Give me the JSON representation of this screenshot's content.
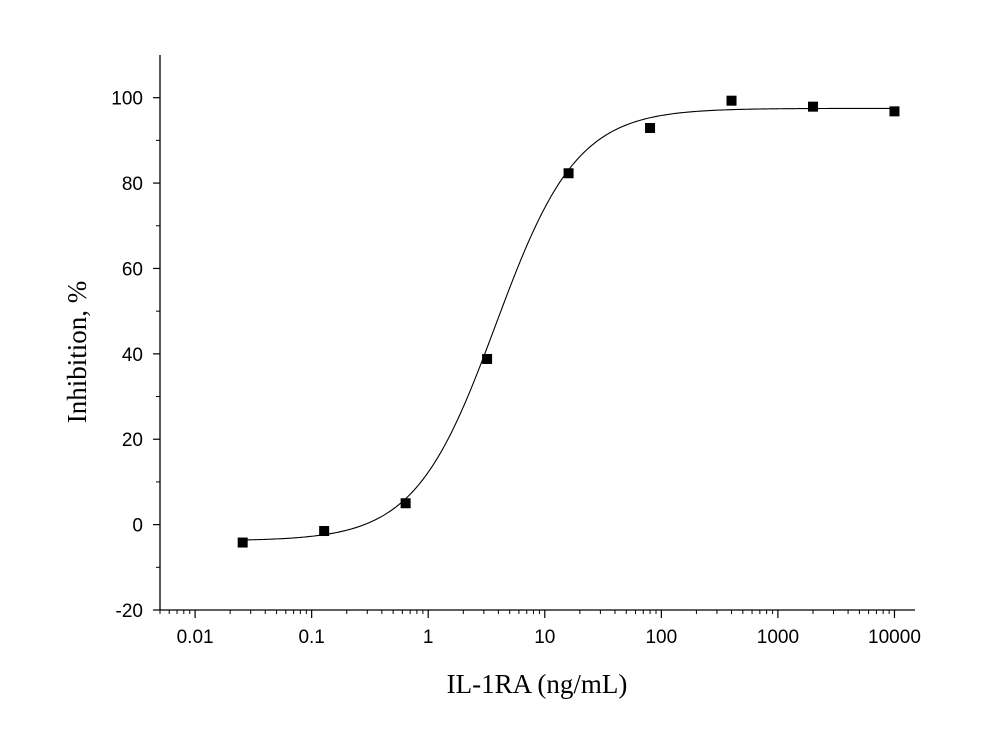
{
  "chart_data": {
    "type": "scatter",
    "xlabel": "IL-1RA (ng/mL)",
    "ylabel": "Inhibition, %",
    "xscale": "log",
    "xlim": [
      0.005,
      15000
    ],
    "ylim": [
      -20,
      110
    ],
    "x_ticks": [
      0.01,
      0.1,
      1,
      10,
      100,
      1000,
      10000
    ],
    "x_tick_labels": [
      "0.01",
      "0.1",
      "1",
      "10",
      "100",
      "1000",
      "10000"
    ],
    "y_ticks": [
      -20,
      0,
      20,
      40,
      60,
      80,
      100
    ],
    "y_tick_labels": [
      "-20",
      "0",
      "20",
      "40",
      "60",
      "80",
      "100"
    ],
    "grid": false,
    "legend": "none",
    "series": [
      {
        "marker": "square",
        "color": "#000000",
        "x": [
          0.0256,
          0.128,
          0.64,
          3.2,
          16,
          80,
          400,
          2000,
          10000
        ],
        "y": [
          -4.2,
          -1.5,
          5.0,
          38.8,
          82.3,
          92.9,
          99.3,
          97.9,
          96.8
        ]
      }
    ],
    "fit": {
      "model": "four-parameter logistic",
      "color": "#000000",
      "bottom": -3.8,
      "top": 97.5,
      "ec50": 3.8,
      "hill": 1.25
    }
  }
}
